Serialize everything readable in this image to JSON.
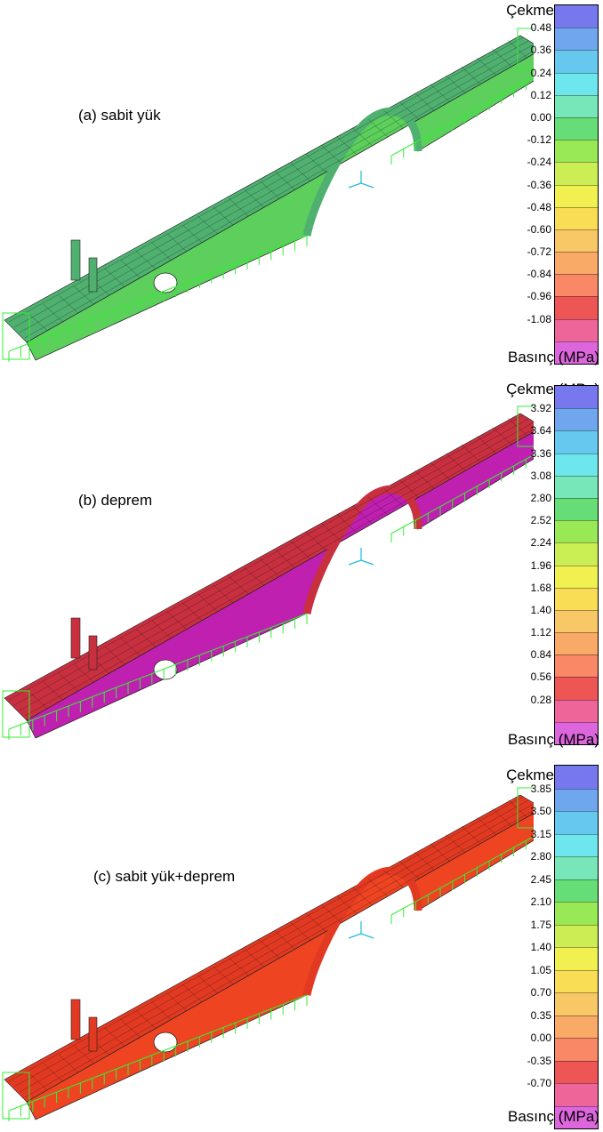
{
  "panels": [
    {
      "label": "(a) sabit yük",
      "top_title": "Çekme (MPa)",
      "bottom_title": "Basınç (MPa)",
      "scale_colors": [
        "#7777ee",
        "#6fa6ee",
        "#66c8ee",
        "#6ee6ee",
        "#77e6b8",
        "#66dd77",
        "#99e855",
        "#ccee55",
        "#f0f050",
        "#f8dd55",
        "#f8c866",
        "#f8aa66",
        "#f88866",
        "#ee5555",
        "#ee6699",
        "#dd66dd"
      ],
      "ticks": [
        "0.48",
        "0.36",
        "0.24",
        "0.12",
        "0.00",
        "-0.12",
        "-0.24",
        "-0.36",
        "-0.48",
        "-0.60",
        "-0.72",
        "-0.84",
        "-0.96",
        "-1.08"
      ],
      "body_color": "#5ccf5c",
      "top_color": "#4fb070"
    },
    {
      "label": "(b) deprem",
      "top_title": "Çekme (MPa)",
      "bottom_title": "Basınç (MPa)",
      "scale_colors": [
        "#7777ee",
        "#6fa6ee",
        "#66c8ee",
        "#6ee6ee",
        "#77e6b8",
        "#66dd77",
        "#99e855",
        "#ccee55",
        "#f0f050",
        "#f8dd55",
        "#f8c866",
        "#f8aa66",
        "#f88866",
        "#ee5555",
        "#ee6699",
        "#dd66dd"
      ],
      "ticks": [
        "3.92",
        "3.64",
        "3.36",
        "3.08",
        "2.80",
        "2.52",
        "2.24",
        "1.96",
        "1.68",
        "1.40",
        "1.12",
        "0.84",
        "0.56",
        "0.28"
      ],
      "body_color": "#c020b0",
      "top_color": "#c83040"
    },
    {
      "label": "(c) sabit yük+deprem",
      "top_title": "Çekme (MPa)",
      "bottom_title": "Basınç (MPa)",
      "scale_colors": [
        "#7777ee",
        "#6fa6ee",
        "#66c8ee",
        "#6ee6ee",
        "#77e6b8",
        "#66dd77",
        "#99e855",
        "#ccee55",
        "#f0f050",
        "#f8dd55",
        "#f8c866",
        "#f8aa66",
        "#f88866",
        "#ee5555",
        "#ee6699",
        "#dd66dd"
      ],
      "ticks": [
        "3.85",
        "3.50",
        "3.15",
        "2.80",
        "2.45",
        "2.10",
        "1.75",
        "1.40",
        "1.05",
        "0.70",
        "0.35",
        "0.00",
        "-0.35",
        "-0.70"
      ],
      "body_color": "#ee4422",
      "top_color": "#e23a22"
    }
  ]
}
